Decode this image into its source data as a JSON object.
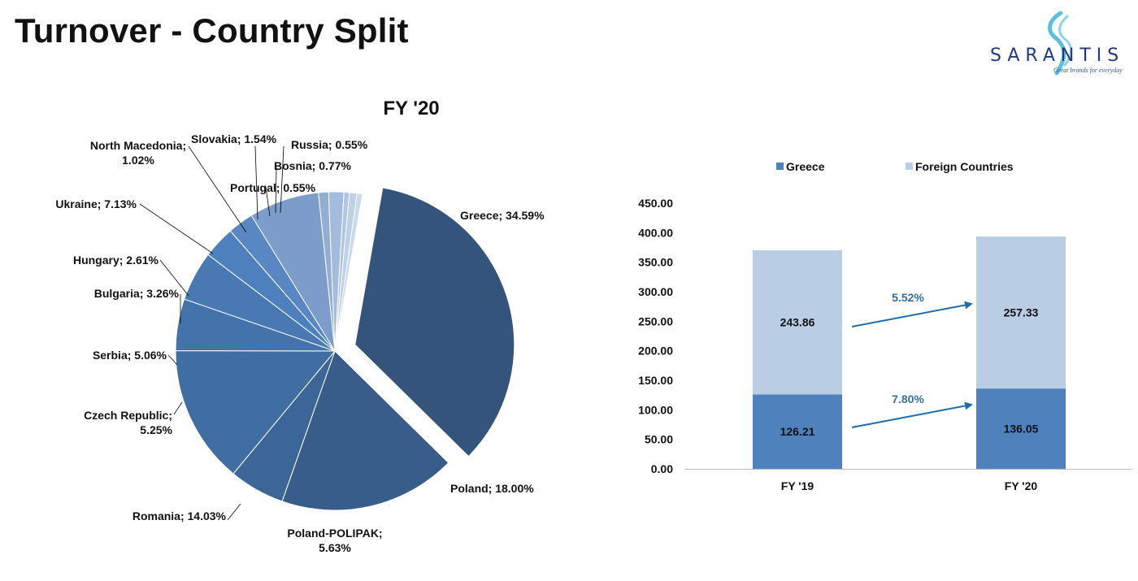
{
  "page": {
    "title": "Turnover - Country Split"
  },
  "logo": {
    "wordmark": "SARANTIS",
    "tagline": "Great brands for everyday",
    "colors": {
      "text": "#1f3a7a",
      "swirl": "#5bc0de"
    }
  },
  "chart_data": [
    {
      "type": "pie",
      "title": "FY '20",
      "slices": [
        {
          "label": "Greece",
          "value": 34.59,
          "display": "Greece; 34.59%",
          "color": "#34547c",
          "exploded": true
        },
        {
          "label": "Poland",
          "value": 18.0,
          "display": "Poland; 18.00%",
          "color": "#385d8a"
        },
        {
          "label": "Poland-POLIPAK",
          "value": 5.63,
          "display": [
            "Poland-POLIPAK;",
            "5.63%"
          ],
          "color": "#3c6697"
        },
        {
          "label": "Romania",
          "value": 14.03,
          "display": "Romania; 14.03%",
          "color": "#406ea3"
        },
        {
          "label": "Czech Republic",
          "value": 5.25,
          "display": [
            "Czech Republic;",
            "5.25%"
          ],
          "color": "#4473ab"
        },
        {
          "label": "Serbia",
          "value": 5.06,
          "display": "Serbia; 5.06%",
          "color": "#4879b3"
        },
        {
          "label": "Bulgaria",
          "value": 3.26,
          "display": "Bulgaria; 3.26%",
          "color": "#4e80bd"
        },
        {
          "label": "Hungary",
          "value": 2.61,
          "display": "Hungary; 2.61%",
          "color": "#5887c4"
        },
        {
          "label": "Ukraine",
          "value": 7.13,
          "display": "Ukraine; 7.13%",
          "color": "#7c9cca"
        },
        {
          "label": "North Macedonia",
          "value": 1.02,
          "display": [
            "North Macedonia;",
            "1.02%"
          ],
          "color": "#93aed3"
        },
        {
          "label": "Slovakia",
          "value": 1.54,
          "display": "Slovakia; 1.54%",
          "color": "#a3bbdc"
        },
        {
          "label": "Portugal",
          "value": 0.55,
          "display": "Portugal; 0.55%",
          "color": "#b0c5e2"
        },
        {
          "label": "Bosnia",
          "value": 0.77,
          "display": "Bosnia; 0.77%",
          "color": "#bdd0e8"
        },
        {
          "label": "Russia",
          "value": 0.55,
          "display": "Russia; 0.55%",
          "color": "#cadaee"
        }
      ]
    },
    {
      "type": "bar",
      "stacked": true,
      "categories": [
        "FY '19",
        "FY '20"
      ],
      "series": [
        {
          "name": "Greece",
          "values": [
            126.21,
            136.05
          ],
          "labels": [
            "126.21",
            "136.05"
          ],
          "color": "#4f81bd"
        },
        {
          "name": "Foreign Countries",
          "values": [
            243.86,
            257.33
          ],
          "labels": [
            "243.86",
            "257.33"
          ],
          "color": "#b9cde5"
        }
      ],
      "ylim": [
        0,
        450
      ],
      "yticks": [
        "0.00",
        "50.00",
        "100.00",
        "150.00",
        "200.00",
        "250.00",
        "300.00",
        "350.00",
        "400.00",
        "450.00"
      ],
      "legend": "top",
      "annotations": [
        {
          "text": "5.52%",
          "applies_to": "Foreign Countries"
        },
        {
          "text": "7.80%",
          "applies_to": "Greece"
        }
      ],
      "arrow_color": "#1f6ea8"
    }
  ]
}
